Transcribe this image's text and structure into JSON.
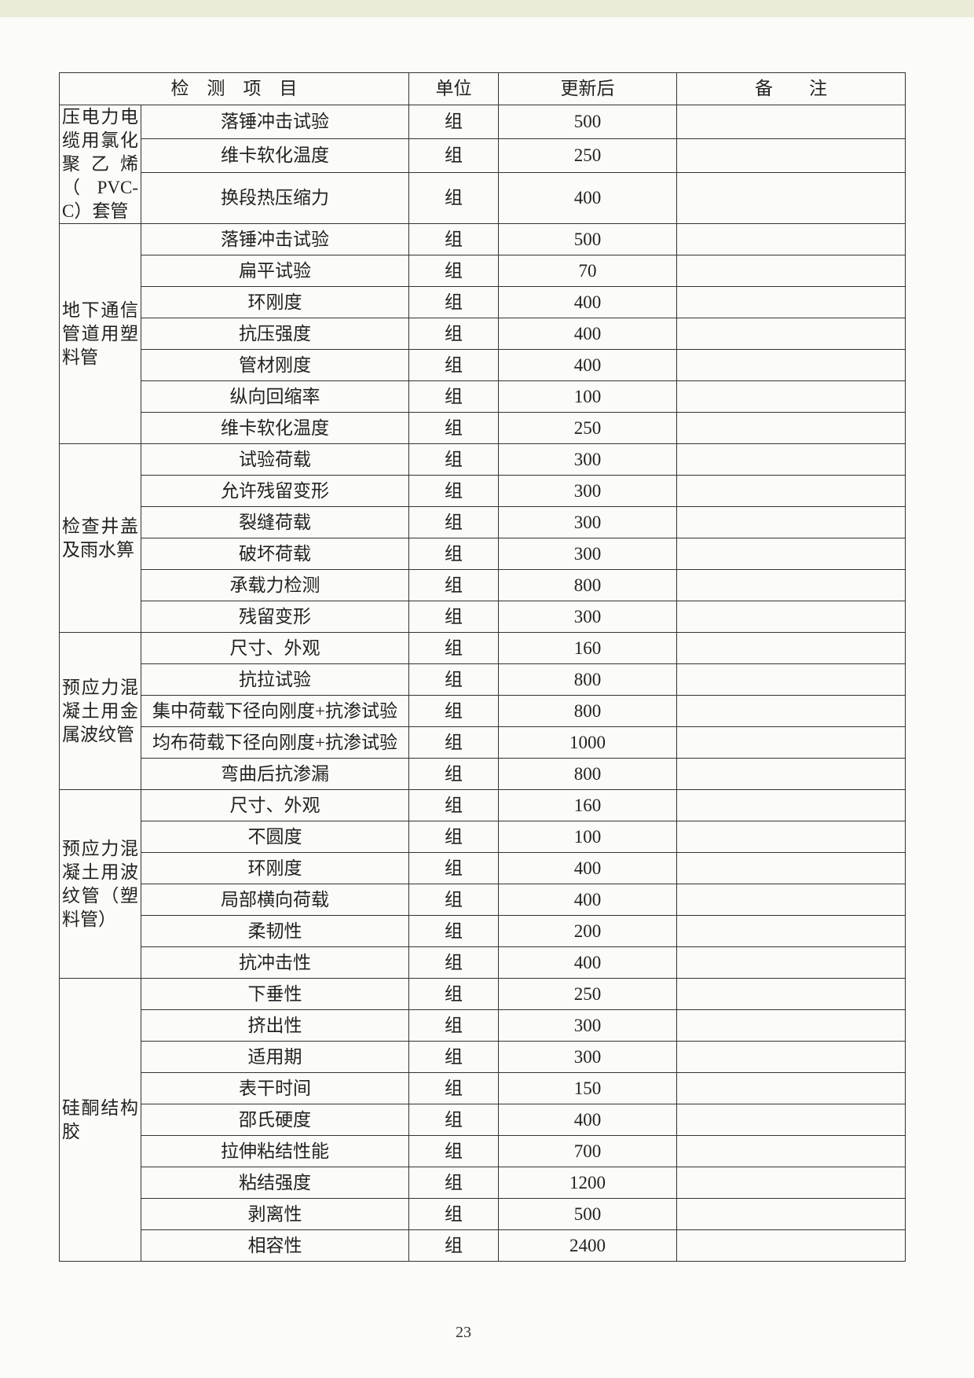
{
  "header": {
    "columns": [
      "检　测　项　目",
      "单位",
      "更新后",
      "备　　注"
    ]
  },
  "table": {
    "groups": [
      {
        "category": "压电力电缆用氯化聚乙烯（PVC-C）套管",
        "rows": [
          {
            "item": "落锤冲击试验",
            "unit": "组",
            "value": 500
          },
          {
            "item": "维卡软化温度",
            "unit": "组",
            "value": 250
          },
          {
            "item": "换段热压缩力",
            "unit": "组",
            "value": 400
          }
        ]
      },
      {
        "category": "地下通信管道用塑料管",
        "rows": [
          {
            "item": "落锤冲击试验",
            "unit": "组",
            "value": 500
          },
          {
            "item": "扁平试验",
            "unit": "组",
            "value": 70
          },
          {
            "item": "环刚度",
            "unit": "组",
            "value": 400
          },
          {
            "item": "抗压强度",
            "unit": "组",
            "value": 400
          },
          {
            "item": "管材刚度",
            "unit": "组",
            "value": 400
          },
          {
            "item": "纵向回缩率",
            "unit": "组",
            "value": 100
          },
          {
            "item": "维卡软化温度",
            "unit": "组",
            "value": 250
          }
        ]
      },
      {
        "category": "检查井盖及雨水箅",
        "rows": [
          {
            "item": "试验荷载",
            "unit": "组",
            "value": 300
          },
          {
            "item": "允许残留变形",
            "unit": "组",
            "value": 300
          },
          {
            "item": "裂缝荷载",
            "unit": "组",
            "value": 300
          },
          {
            "item": "破坏荷载",
            "unit": "组",
            "value": 300
          },
          {
            "item": "承载力检测",
            "unit": "组",
            "value": 800
          },
          {
            "item": "残留变形",
            "unit": "组",
            "value": 300
          }
        ]
      },
      {
        "category": "预应力混凝土用金属波纹管",
        "rows": [
          {
            "item": "尺寸、外观",
            "unit": "组",
            "value": 160
          },
          {
            "item": "抗拉试验",
            "unit": "组",
            "value": 800
          },
          {
            "item": "集中荷载下径向刚度+抗渗试验",
            "unit": "组",
            "value": 800
          },
          {
            "item": "均布荷载下径向刚度+抗渗试验",
            "unit": "组",
            "value": 1000
          },
          {
            "item": "弯曲后抗渗漏",
            "unit": "组",
            "value": 800
          }
        ]
      },
      {
        "category": "预应力混凝土用波纹管（塑料管）",
        "rows": [
          {
            "item": "尺寸、外观",
            "unit": "组",
            "value": 160
          },
          {
            "item": "不圆度",
            "unit": "组",
            "value": 100
          },
          {
            "item": "环刚度",
            "unit": "组",
            "value": 400
          },
          {
            "item": "局部横向荷载",
            "unit": "组",
            "value": 400
          },
          {
            "item": "柔韧性",
            "unit": "组",
            "value": 200
          },
          {
            "item": "抗冲击性",
            "unit": "组",
            "value": 400
          }
        ]
      },
      {
        "category": "硅酮结构胶",
        "rows": [
          {
            "item": "下垂性",
            "unit": "组",
            "value": 250
          },
          {
            "item": "挤出性",
            "unit": "组",
            "value": 300
          },
          {
            "item": "适用期",
            "unit": "组",
            "value": 300
          },
          {
            "item": "表干时间",
            "unit": "组",
            "value": 150
          },
          {
            "item": "邵氏硬度",
            "unit": "组",
            "value": 400
          },
          {
            "item": "拉伸粘结性能",
            "unit": "组",
            "value": 700
          },
          {
            "item": "粘结强度",
            "unit": "组",
            "value": 1200
          },
          {
            "item": "剥离性",
            "unit": "组",
            "value": 500
          },
          {
            "item": "相容性",
            "unit": "组",
            "value": 2400
          }
        ]
      }
    ]
  },
  "footer": {
    "page_number": "23"
  }
}
